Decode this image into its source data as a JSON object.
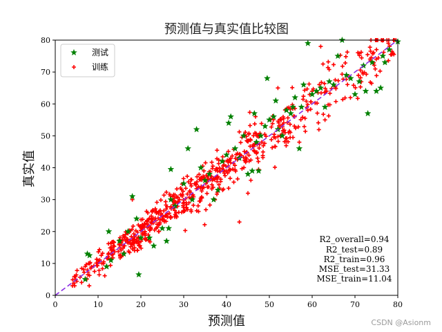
{
  "chart_data": {
    "type": "scatter",
    "title": "预测值与真实值比较图",
    "xlabel": "预测值",
    "ylabel": "真实值",
    "xlim": [
      0,
      80
    ],
    "ylim": [
      0,
      80
    ],
    "xticks": [
      "0",
      "10",
      "20",
      "30",
      "40",
      "50",
      "60",
      "70",
      "80"
    ],
    "yticks": [
      "0",
      "10",
      "20",
      "30",
      "40",
      "50",
      "60",
      "70",
      "80"
    ],
    "grid": false,
    "legend_position": "top-left",
    "reference_line": {
      "slope": 1,
      "intercept": 0,
      "style": "dashed",
      "color": "#8a2be2"
    },
    "series": [
      {
        "name": "测试",
        "marker": "star",
        "color": "#008000",
        "points": [
          [
            7,
            5
          ],
          [
            7.5,
            13
          ],
          [
            8,
            12.5
          ],
          [
            12,
            9
          ],
          [
            12.5,
            20
          ],
          [
            13,
            11
          ],
          [
            15,
            17
          ],
          [
            16,
            13
          ],
          [
            17,
            20
          ],
          [
            18,
            31
          ],
          [
            19,
            24
          ],
          [
            19.5,
            6.5
          ],
          [
            20,
            18
          ],
          [
            22,
            18
          ],
          [
            23,
            15.5
          ],
          [
            25,
            21
          ],
          [
            26,
            17
          ],
          [
            26.5,
            21
          ],
          [
            27,
            39.5
          ],
          [
            27,
            30
          ],
          [
            28,
            28
          ],
          [
            30,
            35
          ],
          [
            31,
            46
          ],
          [
            32,
            30
          ],
          [
            33,
            52
          ],
          [
            34,
            40
          ],
          [
            35,
            36
          ],
          [
            36,
            38
          ],
          [
            37,
            30
          ],
          [
            38,
            33
          ],
          [
            39,
            42
          ],
          [
            40,
            44
          ],
          [
            40.5,
            54
          ],
          [
            41,
            56
          ],
          [
            42,
            46
          ],
          [
            43,
            43
          ],
          [
            44,
            50
          ],
          [
            45,
            38
          ],
          [
            46,
            39
          ],
          [
            46.5,
            57
          ],
          [
            47,
            48
          ],
          [
            47.5,
            39
          ],
          [
            48,
            50
          ],
          [
            49,
            53
          ],
          [
            49.5,
            68
          ],
          [
            50,
            55
          ],
          [
            51,
            56
          ],
          [
            51.5,
            61
          ],
          [
            52,
            52
          ],
          [
            53,
            50
          ],
          [
            54,
            58
          ],
          [
            55,
            57
          ],
          [
            55.5,
            59
          ],
          [
            56,
            62
          ],
          [
            57,
            46
          ],
          [
            57.5,
            59
          ],
          [
            58,
            66
          ],
          [
            59,
            79
          ],
          [
            60,
            63
          ],
          [
            61,
            64
          ],
          [
            62,
            65
          ],
          [
            63,
            59
          ],
          [
            64,
            67
          ],
          [
            65,
            66
          ],
          [
            66,
            75
          ],
          [
            67,
            80
          ],
          [
            68,
            69
          ],
          [
            69,
            68
          ],
          [
            70,
            63
          ],
          [
            71,
            67
          ],
          [
            72,
            72
          ],
          [
            72.5,
            64
          ],
          [
            73,
            57
          ],
          [
            74,
            73
          ],
          [
            75,
            64
          ],
          [
            76,
            65
          ],
          [
            76.5,
            75
          ],
          [
            77,
            73
          ],
          [
            78,
            77
          ],
          [
            80,
            79.5
          ]
        ]
      },
      {
        "name": "训练",
        "marker": "plus",
        "color": "#ff0000",
        "n_points": 720,
        "outliers": [
          [
            43,
            23
          ],
          [
            57,
            48
          ],
          [
            45,
            32
          ],
          [
            62,
            78
          ],
          [
            79,
            80
          ],
          [
            52,
            65
          ],
          [
            63,
            55
          ],
          [
            18,
            30
          ]
        ]
      }
    ]
  },
  "metrics": [
    "R2_overall=0.94",
    "R2_test=0.89",
    "R2_train=0.96",
    "MSE_test=31.33",
    "MSE_train=11.04"
  ],
  "watermark": "CSDN @Asionm"
}
